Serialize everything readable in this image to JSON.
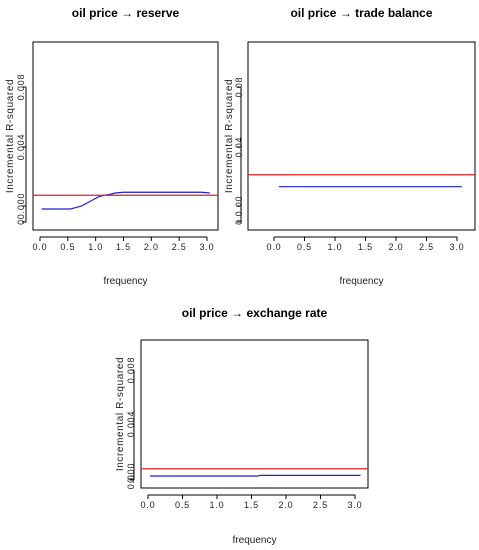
{
  "chart_data": [
    {
      "type": "line",
      "title": "oil price → reserve",
      "xlabel": "frequency",
      "ylabel": "Incremental R-squared",
      "xlim": [
        0,
        3.14
      ],
      "ylim": [
        -0.001,
        0.01
      ],
      "xticks": [
        "0.0",
        "0.5",
        "1.0",
        "1.5",
        "2.0",
        "2.5",
        "3.0"
      ],
      "yticks": [
        "0",
        "0.000",
        "0.004",
        "0.008"
      ],
      "series": [
        {
          "color": "#2222cc",
          "x": [
            0.03,
            0.2,
            0.4,
            0.55,
            0.65,
            0.75,
            0.85,
            0.95,
            1.05,
            1.15,
            1.25,
            1.35,
            1.5,
            2.0,
            2.5,
            2.9,
            3.05
          ],
          "y": [
            0.0,
            0.0,
            0.0,
            0.0,
            0.0001,
            0.0002,
            0.0004,
            0.0006,
            0.0008,
            0.0009,
            0.00095,
            0.00105,
            0.0011,
            0.0011,
            0.0011,
            0.0011,
            0.00105
          ]
        },
        {
          "color": "#dd2222",
          "x": [
            0,
            3.14
          ],
          "y": [
            0.0009,
            0.0009
          ]
        }
      ]
    },
    {
      "type": "line",
      "title": "oil price → trade balance",
      "xlabel": "frequency",
      "ylabel": "Incremental R-squared",
      "xlim": [
        0,
        3.14
      ],
      "ylim": [
        -0.01,
        0.12
      ],
      "xticks": [
        "0.0",
        "0.5",
        "1.0",
        "1.5",
        "2.0",
        "2.5",
        "3.0"
      ],
      "yticks": [
        "0",
        "0.00",
        "0.04",
        "0.08"
      ],
      "series": [
        {
          "color": "#2222cc",
          "x": [
            0.08,
            3.08
          ],
          "y": [
            0.013,
            0.013
          ]
        },
        {
          "color": "#dd2222",
          "x": [
            0,
            3.14
          ],
          "y": [
            0.021,
            0.021
          ]
        }
      ]
    },
    {
      "type": "line",
      "title": "oil price → exchange rate",
      "xlabel": "frequency",
      "ylabel": "Incremental R-squared",
      "xlim": [
        0,
        3.14
      ],
      "ylim": [
        -0.0012,
        0.0108
      ],
      "xticks": [
        "0.0",
        "0.5",
        "1.0",
        "1.5",
        "2.0",
        "2.5",
        "3.0"
      ],
      "yticks": [
        "0",
        "0.000",
        "0.004",
        "0.008"
      ],
      "series": [
        {
          "color": "#2222cc",
          "x": [
            0.03,
            1.6,
            1.62,
            3.08
          ],
          "y": [
            0.0,
            0.0,
            5e-05,
            5e-05
          ]
        },
        {
          "color": "#dd2222",
          "x": [
            0,
            3.14
          ],
          "y": [
            0.00055,
            0.00055
          ]
        }
      ]
    }
  ]
}
